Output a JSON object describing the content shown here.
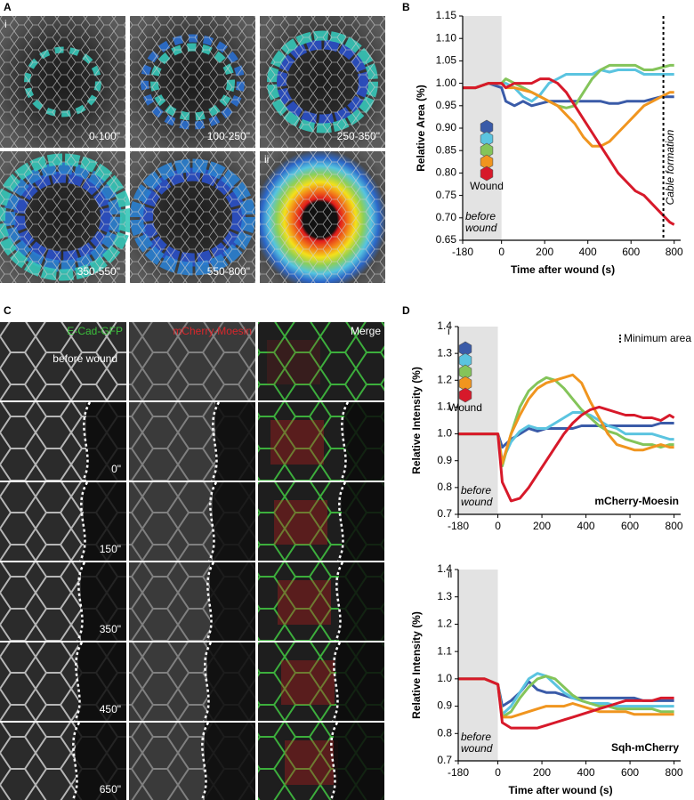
{
  "panel_a": {
    "letter": "A",
    "tags": [
      "i",
      "ii"
    ],
    "time_labels": [
      "0-100\"",
      "100-250\"",
      "250-350\"",
      "350-550\"",
      "550-800\""
    ]
  },
  "panel_c": {
    "letter": "C",
    "columns": [
      "E-Cad-GFP",
      "mCherry-Moesin",
      "Merge"
    ],
    "rows": [
      "before wound",
      "0\"",
      "150\"",
      "350\"",
      "450\"",
      "650\""
    ]
  },
  "letters": [
    "B",
    "D"
  ],
  "chart_data": [
    {
      "type": "line",
      "y_label": "Relative Area (%)",
      "x_label": "Time after wound (s)",
      "xlim": [
        -180,
        830
      ],
      "xticks": [
        -180,
        0,
        200,
        400,
        600,
        800
      ],
      "ylim": [
        0.65,
        1.15
      ],
      "yticks": [
        0.65,
        {
          "value": 0.7,
          "label": "0.70"
        },
        0.75,
        {
          "value": 0.8,
          "label": "0.80"
        },
        0.85,
        {
          "value": 0.9,
          "label": "0.90"
        },
        0.95,
        {
          "value": 1.0,
          "label": "1.00"
        },
        1.05,
        {
          "value": 1.1,
          "label": "1.10"
        },
        1.15
      ],
      "x": [
        -180,
        -120,
        -60,
        0,
        20,
        60,
        100,
        140,
        180,
        220,
        260,
        300,
        340,
        380,
        420,
        460,
        500,
        540,
        580,
        620,
        660,
        700,
        740,
        780,
        800
      ],
      "series": [
        {
          "color": "#3a5ba8",
          "values": [
            0.99,
            0.99,
            1.0,
            0.99,
            0.96,
            0.95,
            0.96,
            0.95,
            0.955,
            0.96,
            0.96,
            0.96,
            0.96,
            0.96,
            0.96,
            0.96,
            0.955,
            0.955,
            0.96,
            0.96,
            0.96,
            0.965,
            0.97,
            0.97,
            0.97
          ]
        },
        {
          "color": "#5bc4e0",
          "values": [
            0.99,
            0.99,
            1.0,
            1.0,
            1.0,
            0.99,
            0.97,
            0.96,
            0.975,
            1.0,
            1.01,
            1.02,
            1.02,
            1.02,
            1.02,
            1.03,
            1.025,
            1.03,
            1.03,
            1.03,
            1.02,
            1.02,
            1.02,
            1.02,
            1.02
          ]
        },
        {
          "color": "#84c45a",
          "values": [
            0.99,
            0.99,
            1.0,
            1.0,
            1.01,
            1.0,
            0.99,
            0.98,
            0.97,
            0.96,
            0.95,
            0.945,
            0.95,
            0.98,
            1.01,
            1.03,
            1.04,
            1.04,
            1.04,
            1.04,
            1.03,
            1.03,
            1.035,
            1.04,
            1.04
          ]
        },
        {
          "color": "#f0951f",
          "values": [
            0.99,
            0.99,
            1.0,
            1.0,
            0.99,
            0.99,
            0.985,
            0.98,
            0.97,
            0.96,
            0.95,
            0.93,
            0.91,
            0.88,
            0.86,
            0.86,
            0.87,
            0.89,
            0.91,
            0.93,
            0.95,
            0.96,
            0.97,
            0.98,
            0.98
          ]
        },
        {
          "color": "#d7192a",
          "values": [
            0.99,
            0.99,
            1.0,
            1.0,
            0.99,
            1.0,
            1.0,
            1.0,
            1.01,
            1.01,
            1.0,
            0.98,
            0.95,
            0.92,
            0.89,
            0.86,
            0.83,
            0.8,
            0.78,
            0.76,
            0.75,
            0.73,
            0.71,
            0.69,
            0.685
          ]
        }
      ],
      "annotations": {
        "before_wound": "before wound",
        "wound": "Wound",
        "cable_formation": {
          "text": "Cable formation",
          "x": 750
        }
      }
    },
    {
      "type": "line",
      "y_label": "Relative Intensity (%)",
      "xlim": [
        -180,
        830
      ],
      "xticks": [
        -180,
        0,
        200,
        400,
        600,
        800
      ],
      "ylim": [
        0.7,
        1.4
      ],
      "yticks": [
        0.7,
        0.8,
        0.9,
        {
          "value": 1.0,
          "label": "1.0"
        },
        1.1,
        1.2,
        1.3,
        1.4
      ],
      "x": [
        -180,
        -120,
        -60,
        0,
        20,
        60,
        100,
        140,
        180,
        220,
        260,
        300,
        340,
        380,
        420,
        460,
        500,
        540,
        580,
        620,
        660,
        700,
        740,
        780,
        800
      ],
      "series": [
        {
          "color": "#3a5ba8",
          "values": [
            1.0,
            1.0,
            1.0,
            1.0,
            0.95,
            0.98,
            1.0,
            1.02,
            1.01,
            1.02,
            1.02,
            1.02,
            1.02,
            1.03,
            1.03,
            1.03,
            1.03,
            1.03,
            1.03,
            1.03,
            1.03,
            1.03,
            1.04,
            1.04,
            1.04
          ]
        },
        {
          "color": "#5bc4e0",
          "values": [
            1.0,
            1.0,
            1.0,
            1.0,
            0.9,
            0.97,
            1.01,
            1.03,
            1.02,
            1.02,
            1.04,
            1.06,
            1.08,
            1.08,
            1.07,
            1.05,
            1.03,
            1.02,
            1.0,
            1.0,
            1.0,
            1.0,
            0.99,
            0.98,
            0.98
          ]
        },
        {
          "color": "#84c45a",
          "values": [
            1.0,
            1.0,
            1.0,
            1.0,
            0.88,
            1.0,
            1.1,
            1.16,
            1.19,
            1.21,
            1.2,
            1.17,
            1.13,
            1.09,
            1.06,
            1.03,
            1.01,
            1.0,
            0.98,
            0.97,
            0.96,
            0.96,
            0.95,
            0.96,
            0.96
          ]
        },
        {
          "color": "#f0951f",
          "values": [
            1.0,
            1.0,
            1.0,
            1.0,
            0.89,
            1.0,
            1.07,
            1.13,
            1.17,
            1.19,
            1.2,
            1.21,
            1.22,
            1.19,
            1.12,
            1.06,
            1.0,
            0.96,
            0.95,
            0.94,
            0.94,
            0.95,
            0.96,
            0.95,
            0.95
          ]
        },
        {
          "color": "#d7192a",
          "values": [
            1.0,
            1.0,
            1.0,
            1.0,
            0.82,
            0.75,
            0.76,
            0.8,
            0.85,
            0.9,
            0.95,
            1.0,
            1.04,
            1.07,
            1.09,
            1.1,
            1.09,
            1.08,
            1.07,
            1.07,
            1.06,
            1.06,
            1.05,
            1.07,
            1.06
          ]
        }
      ],
      "annotations": {
        "tag": "i",
        "minimum_area": "Minimum area",
        "before_wound": "before wound",
        "trace": "mCherry-Moesin",
        "wound": "Wound"
      }
    },
    {
      "type": "line",
      "y_label": "Relative Intensity (%)",
      "x_label": "Time after wound (s)",
      "xlim": [
        -180,
        830
      ],
      "xticks": [
        -180,
        0,
        200,
        400,
        600,
        800
      ],
      "ylim": [
        0.7,
        1.4
      ],
      "yticks": [
        0.7,
        0.8,
        0.9,
        {
          "value": 1.0,
          "label": "1.0"
        },
        1.1,
        1.2,
        1.3,
        1.4
      ],
      "x": [
        -180,
        -120,
        -60,
        0,
        20,
        60,
        100,
        140,
        180,
        220,
        260,
        300,
        340,
        380,
        420,
        460,
        500,
        540,
        580,
        620,
        660,
        700,
        740,
        780,
        800
      ],
      "series": [
        {
          "color": "#3a5ba8",
          "values": [
            1.0,
            1.0,
            1.0,
            0.98,
            0.9,
            0.92,
            0.95,
            0.99,
            0.96,
            0.95,
            0.95,
            0.94,
            0.93,
            0.93,
            0.93,
            0.93,
            0.93,
            0.93,
            0.93,
            0.93,
            0.92,
            0.92,
            0.92,
            0.92,
            0.92
          ]
        },
        {
          "color": "#5bc4e0",
          "values": [
            1.0,
            1.0,
            1.0,
            0.98,
            0.87,
            0.9,
            0.95,
            1.0,
            1.02,
            1.01,
            0.98,
            0.95,
            0.93,
            0.92,
            0.91,
            0.91,
            0.91,
            0.9,
            0.9,
            0.9,
            0.9,
            0.9,
            0.9,
            0.9,
            0.9
          ]
        },
        {
          "color": "#84c45a",
          "values": [
            1.0,
            1.0,
            1.0,
            0.98,
            0.86,
            0.88,
            0.93,
            0.97,
            1.0,
            1.01,
            1.0,
            0.97,
            0.94,
            0.92,
            0.91,
            0.9,
            0.9,
            0.89,
            0.89,
            0.89,
            0.89,
            0.89,
            0.88,
            0.88,
            0.88
          ]
        },
        {
          "color": "#f0951f",
          "values": [
            1.0,
            1.0,
            1.0,
            0.98,
            0.86,
            0.86,
            0.87,
            0.88,
            0.89,
            0.9,
            0.9,
            0.9,
            0.91,
            0.9,
            0.89,
            0.88,
            0.88,
            0.88,
            0.88,
            0.87,
            0.87,
            0.87,
            0.87,
            0.87,
            0.87
          ]
        },
        {
          "color": "#d7192a",
          "values": [
            1.0,
            1.0,
            1.0,
            0.98,
            0.84,
            0.82,
            0.82,
            0.82,
            0.82,
            0.83,
            0.84,
            0.85,
            0.86,
            0.87,
            0.88,
            0.89,
            0.9,
            0.91,
            0.92,
            0.92,
            0.92,
            0.92,
            0.93,
            0.93,
            0.93
          ]
        }
      ],
      "annotations": {
        "tag": "ii",
        "before_wound": "before wound",
        "trace": "Sqh-mCherry"
      }
    }
  ]
}
